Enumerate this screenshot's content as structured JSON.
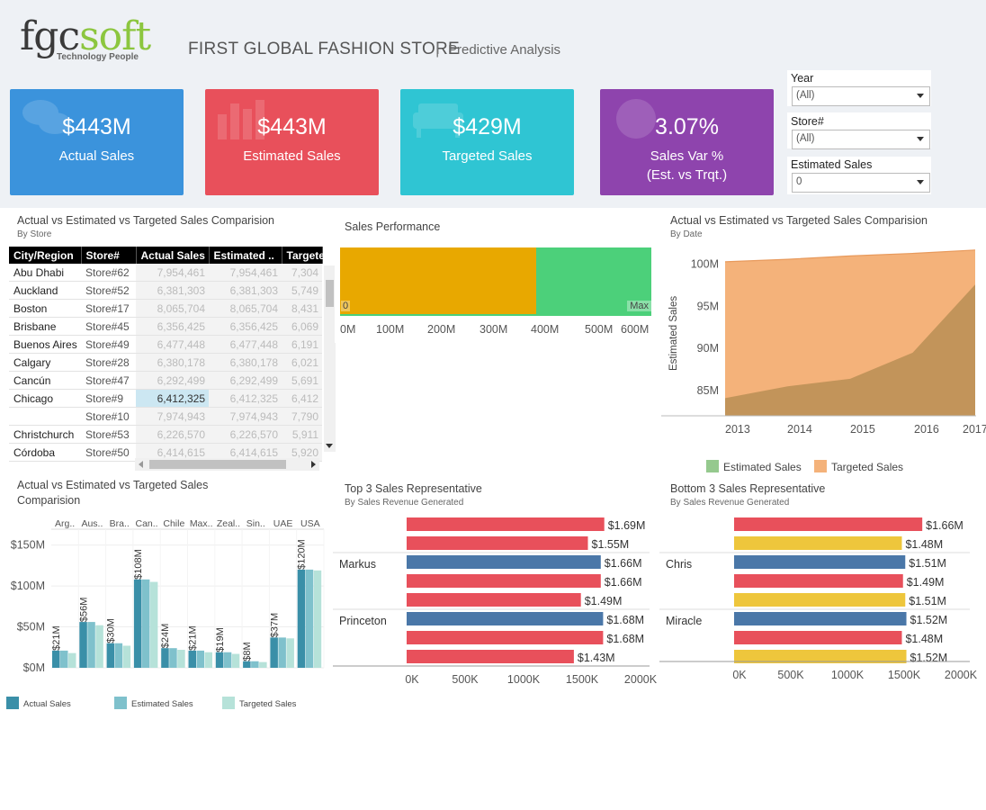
{
  "header": {
    "logo_main": "fgc",
    "logo_accent": "soft",
    "logo_tagline": "Technology People",
    "title": "FIRST GLOBAL FASHION STORE",
    "separator": "|",
    "subtitle": "Predictive Analysis"
  },
  "kpis": [
    {
      "value": "$443M",
      "label": "Actual Sales",
      "color": "#3b93dc",
      "icon": "chat-bubbles-icon"
    },
    {
      "value": "$443M",
      "label": "Estimated Sales",
      "color": "#e8505b",
      "icon": "bar-chart-icon"
    },
    {
      "value": "$429M",
      "label": "Targeted Sales",
      "color": "#2fc5d3",
      "icon": "sofa-icon"
    },
    {
      "value": "3.07%",
      "label": "Sales Var %",
      "label2": "(Est. vs Trqt.)",
      "color": "#8e44ad",
      "icon": "globe-icon"
    }
  ],
  "filters": [
    {
      "label": "Year",
      "value": "(All)"
    },
    {
      "label": "Store#",
      "value": "(All)"
    },
    {
      "label": "Estimated Sales",
      "value": "0"
    }
  ],
  "store_table": {
    "title": "Actual vs Estimated vs Targeted Sales Comparision",
    "subtitle": "By Store",
    "columns": [
      "City/Region",
      "Store#",
      "Actual Sales",
      "Estimated ..",
      "Targete"
    ],
    "rows": [
      [
        "Abu Dhabi",
        "Store#62",
        "7,954,461",
        "7,954,461",
        "7,304"
      ],
      [
        "Auckland",
        "Store#52",
        "6,381,303",
        "6,381,303",
        "5,749"
      ],
      [
        "Boston",
        "Store#17",
        "8,065,704",
        "8,065,704",
        "8,431"
      ],
      [
        "Brisbane",
        "Store#45",
        "6,356,425",
        "6,356,425",
        "6,069"
      ],
      [
        "Buenos Aires",
        "Store#49",
        "6,477,448",
        "6,477,448",
        "6,191"
      ],
      [
        "Calgary",
        "Store#28",
        "6,380,178",
        "6,380,178",
        "6,021"
      ],
      [
        "Cancún",
        "Store#47",
        "6,292,499",
        "6,292,499",
        "5,691"
      ],
      [
        "Chicago",
        "Store#9",
        "6,412,325",
        "6,412,325",
        "6,412"
      ],
      [
        "",
        "Store#10",
        "7,974,943",
        "7,974,943",
        "7,790"
      ],
      [
        "Christchurch",
        "Store#53",
        "6,226,570",
        "6,226,570",
        "5,911"
      ],
      [
        "Córdoba",
        "Store#50",
        "6,414,615",
        "6,414,615",
        "5,920"
      ]
    ]
  },
  "sales_performance": {
    "title": "Sales Performance",
    "min_label": "0",
    "max_label": "Max",
    "ticks": [
      "0M",
      "100M",
      "200M",
      "300M",
      "400M",
      "500M",
      "600M"
    ],
    "actual_fill": 0.63,
    "colors": {
      "actual": "#e8a800",
      "target": "#4cd07a"
    }
  },
  "by_date": {
    "title": "Actual vs Estimated vs Targeted Sales Comparision",
    "subtitle": "By Date",
    "ylabel": "Estimated Sales",
    "yticks": [
      "100M",
      "95M",
      "90M",
      "85M"
    ],
    "xticks": [
      "2013",
      "2014",
      "2015",
      "2016",
      "2017"
    ],
    "legend": [
      {
        "name": "Estimated Sales",
        "color": "#95c98e"
      },
      {
        "name": "Targeted Sales",
        "color": "#f4b27a"
      }
    ]
  },
  "by_country": {
    "title": "Actual vs Estimated vs Targeted Sales",
    "title2": "Comparision",
    "countries": [
      "Arg..",
      "Aus..",
      "Bra..",
      "Can..",
      "Chile",
      "Max..",
      "Zeal..",
      "Sin..",
      "UAE",
      "USA"
    ],
    "yticks": [
      "$150M",
      "$100M",
      "$50M",
      "$0M"
    ],
    "legend": [
      {
        "name": "Actual Sales",
        "color": "#3a8fa8"
      },
      {
        "name": "Estimated Sales",
        "color": "#7fc1cc"
      },
      {
        "name": "Targeted Sales",
        "color": "#b6e2d9"
      }
    ]
  },
  "chart_data": [
    {
      "type": "area",
      "title": "Actual vs Estimated vs Targeted Sales Comparision",
      "subtitle": "By Date",
      "ylabel": "Estimated Sales",
      "x": [
        "2013",
        "2014",
        "2015",
        "2016",
        "2017"
      ],
      "ylim": [
        82,
        102
      ],
      "series": [
        {
          "name": "Targeted Sales",
          "values": [
            100.3,
            100.6,
            101.0,
            101.3,
            101.7
          ]
        },
        {
          "name": "Estimated Sales",
          "values": [
            84.1,
            85.5,
            86.4,
            89.5,
            97.6
          ]
        }
      ]
    },
    {
      "type": "bar",
      "title": "Actual vs Estimated vs Targeted Sales",
      "subtitle": "Comparision",
      "categories": [
        "Arg..",
        "Aus..",
        "Bra..",
        "Can..",
        "Chile",
        "Max..",
        "Zeal..",
        "Sin..",
        "UAE",
        "USA"
      ],
      "ylim": [
        0,
        165
      ],
      "series": [
        {
          "name": "Actual Sales",
          "values": [
            21,
            56,
            30,
            108,
            24,
            21,
            19,
            8,
            37,
            120
          ],
          "labels": [
            "$21M",
            "$56M",
            "$30M",
            "$108M",
            "$24M",
            "$21M",
            "$19M",
            "$8M",
            "$37M",
            "$120M"
          ]
        },
        {
          "name": "Estimated Sales",
          "values": [
            21,
            56,
            30,
            108,
            24,
            21,
            19,
            8,
            37,
            120
          ]
        },
        {
          "name": "Targeted Sales",
          "values": [
            18,
            52,
            27,
            105,
            22,
            19,
            17,
            7,
            36,
            119
          ]
        }
      ]
    },
    {
      "type": "bar",
      "title": "Top 3 Sales Representative",
      "subtitle": "By Sales Revenue Generated",
      "orientation": "horizontal",
      "xticks": [
        "0K",
        "500K",
        "1000K",
        "1500K",
        "2000K"
      ],
      "xlim": [
        0,
        2000
      ],
      "groups": [
        {
          "name": "",
          "bars": [
            {
              "value": 1690,
              "label": "$1.69M",
              "color": "#e8505b"
            },
            {
              "value": 1550,
              "label": "$1.55M",
              "color": "#e8505b"
            }
          ]
        },
        {
          "name": "Markus",
          "bars": [
            {
              "value": 1660,
              "label": "$1.66M",
              "color": "#4a77a8"
            },
            {
              "value": 1660,
              "label": "$1.66M",
              "color": "#e8505b"
            },
            {
              "value": 1490,
              "label": "$1.49M",
              "color": "#e8505b"
            }
          ]
        },
        {
          "name": "Princeton",
          "bars": [
            {
              "value": 1680,
              "label": "$1.68M",
              "color": "#4a77a8"
            },
            {
              "value": 1680,
              "label": "$1.68M",
              "color": "#e8505b"
            },
            {
              "value": 1430,
              "label": "$1.43M",
              "color": "#e8505b"
            }
          ]
        }
      ]
    },
    {
      "type": "bar",
      "title": "Bottom 3 Sales Representative",
      "subtitle": "By Sales Revenue Generated",
      "orientation": "horizontal",
      "xticks": [
        "0K",
        "500K",
        "1000K",
        "1500K",
        "2000K"
      ],
      "xlim": [
        0,
        2000
      ],
      "groups": [
        {
          "name": "",
          "bars": [
            {
              "value": 1660,
              "label": "$1.66M",
              "color": "#e8505b"
            },
            {
              "value": 1480,
              "label": "$1.48M",
              "color": "#eec63c"
            }
          ]
        },
        {
          "name": "Chris",
          "bars": [
            {
              "value": 1510,
              "label": "$1.51M",
              "color": "#4a77a8"
            },
            {
              "value": 1490,
              "label": "$1.49M",
              "color": "#e8505b"
            },
            {
              "value": 1510,
              "label": "$1.51M",
              "color": "#eec63c"
            }
          ]
        },
        {
          "name": "Miracle",
          "bars": [
            {
              "value": 1520,
              "label": "$1.52M",
              "color": "#4a77a8"
            },
            {
              "value": 1480,
              "label": "$1.48M",
              "color": "#e8505b"
            },
            {
              "value": 1520,
              "label": "$1.52M",
              "color": "#eec63c"
            }
          ]
        }
      ]
    }
  ]
}
